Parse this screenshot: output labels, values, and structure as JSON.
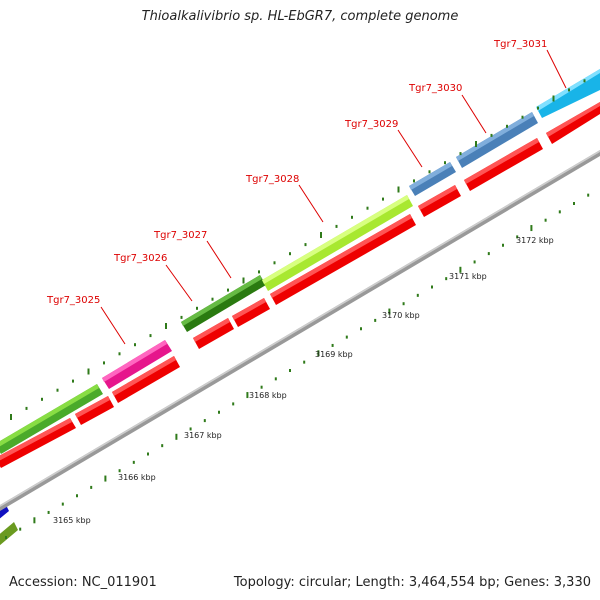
{
  "title": "Thioalkalivibrio sp. HL-EbGR7, complete genome",
  "footer": {
    "accession": "Accession: NC_011901",
    "summary": "Topology: circular; Length: 3,464,554 bp; Genes: 3,330"
  },
  "colors": {
    "forward_strand": [
      "#4aaa2a",
      "#e6168c",
      "#2a7a10",
      "#a8e830",
      "#4a80b8",
      "#18b4e8"
    ],
    "cds_feature": "#ff0000",
    "backbone": "#999999",
    "ticks": "#2f7a1a",
    "label": "#dd0000"
  },
  "genes": [
    {
      "name": "Tgr7_3025"
    },
    {
      "name": "Tgr7_3026"
    },
    {
      "name": "Tgr7_3027"
    },
    {
      "name": "Tgr7_3028"
    },
    {
      "name": "Tgr7_3029"
    },
    {
      "name": "Tgr7_3030"
    },
    {
      "name": "Tgr7_3031"
    }
  ],
  "coordinate_labels": [
    "3165 kbp",
    "3166 kbp",
    "3167 kbp",
    "3168 kbp",
    "3169 kbp",
    "3170 kbp",
    "3171 kbp",
    "3172 kbp"
  ]
}
